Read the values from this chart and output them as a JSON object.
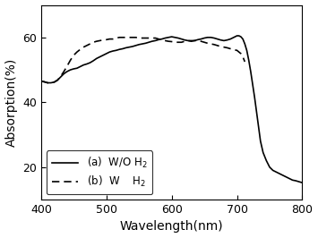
{
  "xlim": [
    400,
    800
  ],
  "ylim": [
    10,
    70
  ],
  "yticks": [
    20,
    40,
    60
  ],
  "xticks": [
    400,
    500,
    600,
    700,
    800
  ],
  "xlabel": "Wavelength(nm)",
  "ylabel": "Absorption(%)",
  "legend_label_a": "(a)  W/O H$_2$",
  "legend_label_b": "(b)  W    H$_2$",
  "line_a_color": "#000000",
  "line_b_color": "#000000",
  "background_color": "#ffffff",
  "curve_a": {
    "x": [
      400,
      405,
      410,
      415,
      420,
      425,
      430,
      435,
      440,
      445,
      450,
      455,
      460,
      465,
      470,
      475,
      480,
      485,
      490,
      495,
      500,
      505,
      510,
      515,
      520,
      525,
      530,
      535,
      540,
      545,
      550,
      555,
      560,
      565,
      570,
      575,
      580,
      585,
      590,
      595,
      600,
      605,
      610,
      615,
      620,
      625,
      630,
      635,
      640,
      645,
      650,
      655,
      660,
      665,
      670,
      675,
      680,
      685,
      690,
      695,
      700,
      703,
      706,
      709,
      712,
      715,
      718,
      721,
      724,
      727,
      730,
      733,
      736,
      740,
      745,
      750,
      755,
      760,
      765,
      770,
      775,
      780,
      785,
      790,
      795,
      800
    ],
    "y": [
      46.5,
      46.3,
      46.0,
      46.0,
      46.2,
      46.8,
      47.8,
      48.8,
      49.5,
      50.0,
      50.3,
      50.5,
      51.0,
      51.5,
      51.8,
      52.2,
      52.8,
      53.5,
      54.0,
      54.5,
      55.0,
      55.5,
      55.8,
      56.0,
      56.3,
      56.5,
      56.8,
      57.0,
      57.2,
      57.5,
      57.8,
      58.0,
      58.2,
      58.5,
      58.8,
      59.0,
      59.3,
      59.5,
      59.8,
      60.0,
      60.2,
      60.0,
      59.8,
      59.5,
      59.2,
      59.0,
      58.8,
      59.0,
      59.3,
      59.5,
      59.8,
      60.0,
      60.0,
      59.8,
      59.5,
      59.2,
      59.0,
      59.2,
      59.5,
      60.0,
      60.5,
      60.5,
      60.2,
      59.5,
      58.0,
      56.0,
      53.0,
      49.5,
      45.5,
      41.5,
      37.0,
      32.5,
      28.0,
      24.5,
      22.0,
      20.0,
      19.0,
      18.5,
      18.0,
      17.5,
      17.0,
      16.5,
      16.0,
      15.8,
      15.5,
      15.2
    ]
  },
  "curve_b": {
    "x": [
      400,
      405,
      410,
      415,
      420,
      425,
      430,
      435,
      440,
      445,
      450,
      455,
      460,
      465,
      470,
      475,
      480,
      485,
      490,
      495,
      500,
      505,
      510,
      515,
      520,
      525,
      530,
      535,
      540,
      545,
      550,
      555,
      560,
      565,
      570,
      575,
      580,
      585,
      590,
      595,
      600,
      605,
      610,
      615,
      620,
      625,
      630,
      635,
      640,
      645,
      650,
      655,
      660,
      665,
      670,
      675,
      680,
      685,
      690,
      695,
      700,
      703,
      706,
      709,
      712
    ],
    "y": [
      46.5,
      46.3,
      46.0,
      46.0,
      46.2,
      46.8,
      48.0,
      49.5,
      51.2,
      53.0,
      54.5,
      55.5,
      56.3,
      57.0,
      57.5,
      58.0,
      58.5,
      58.8,
      59.0,
      59.2,
      59.3,
      59.5,
      59.5,
      59.8,
      60.0,
      60.0,
      60.0,
      60.0,
      60.0,
      60.0,
      59.8,
      59.8,
      59.8,
      59.8,
      59.8,
      59.8,
      59.5,
      59.2,
      59.0,
      58.8,
      58.7,
      58.5,
      58.5,
      58.5,
      58.8,
      59.0,
      59.0,
      59.0,
      59.0,
      58.8,
      58.5,
      58.2,
      58.0,
      57.8,
      57.5,
      57.2,
      57.0,
      56.8,
      56.5,
      56.2,
      56.0,
      55.5,
      55.0,
      54.0,
      52.5
    ]
  }
}
